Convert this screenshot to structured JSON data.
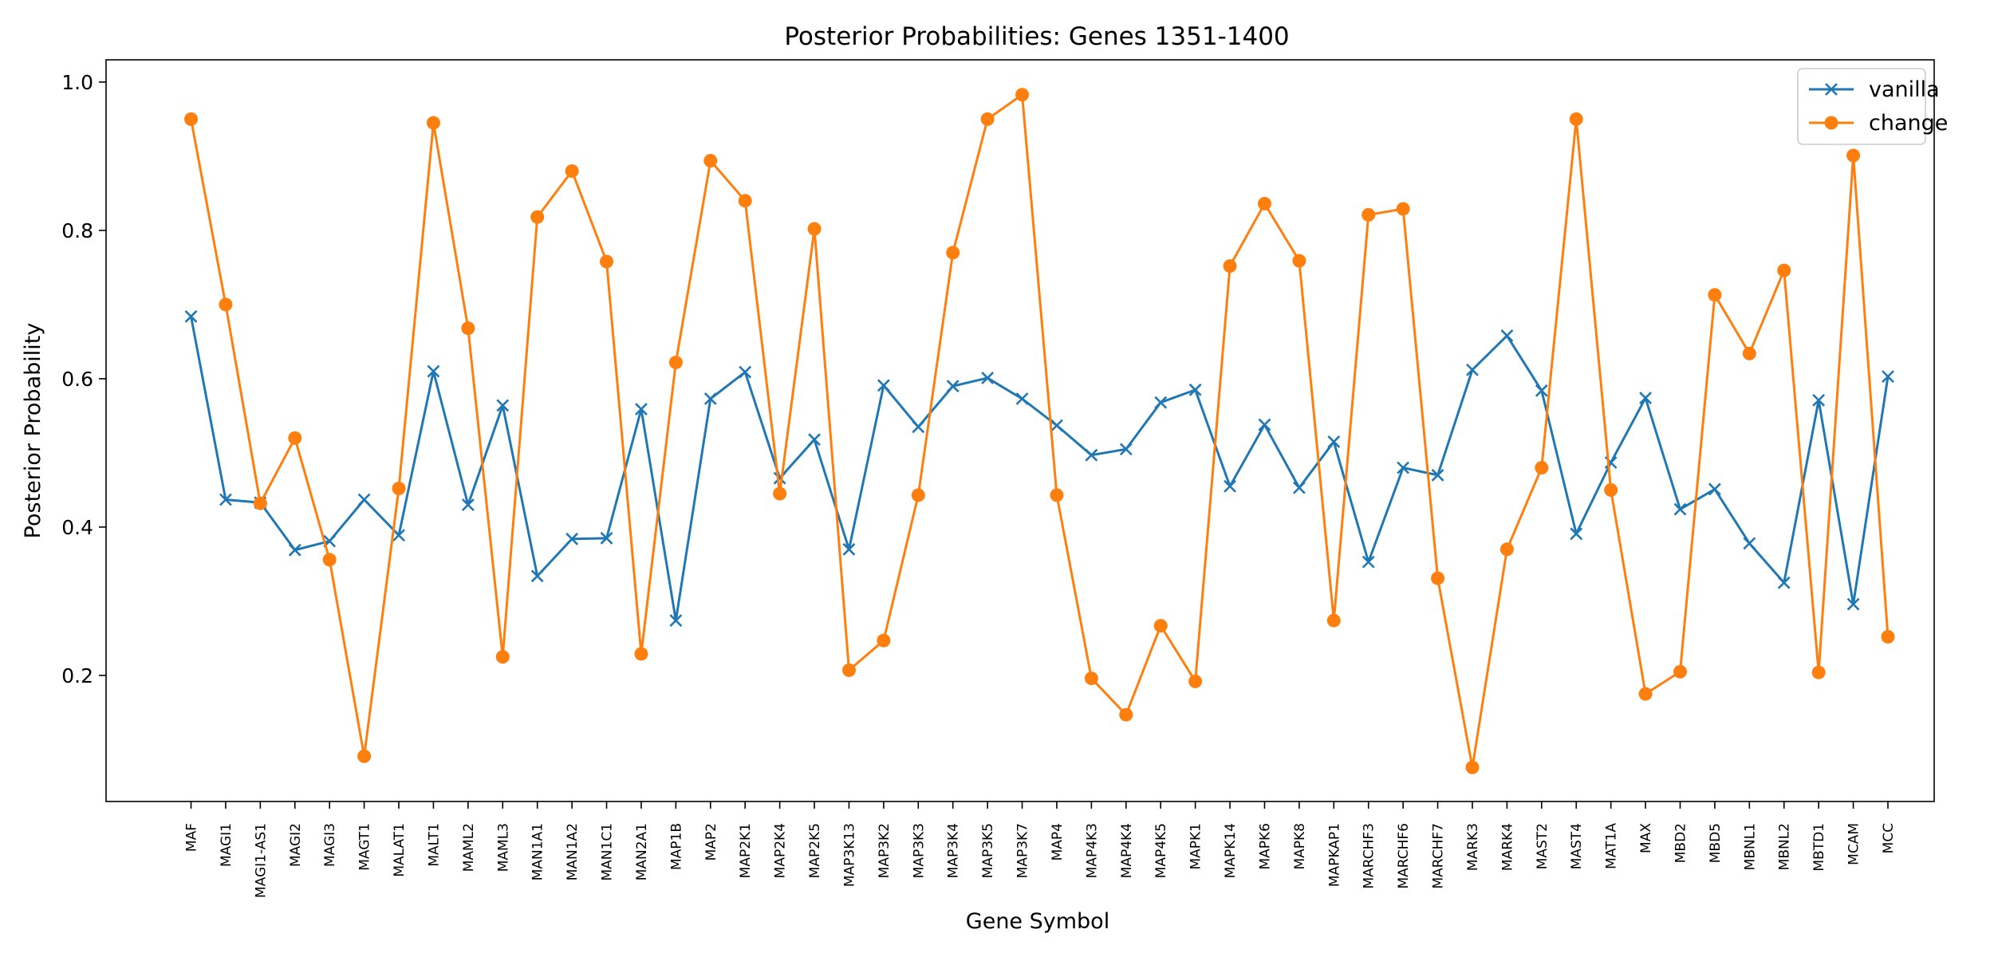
{
  "chart_data": {
    "type": "line",
    "title": "Posterior Probabilities: Genes 1351-1400",
    "xlabel": "Gene Symbol",
    "ylabel": "Posterior Probability",
    "ylim": [
      0.03,
      1.03
    ],
    "yticks": [
      "0.2",
      "0.4",
      "0.6",
      "0.8",
      "1.0"
    ],
    "grid": false,
    "legend_position": "top-right",
    "categories": [
      "MAF",
      "MAGI1",
      "MAGI1-AS1",
      "MAGI2",
      "MAGI3",
      "MAGT1",
      "MALAT1",
      "MALT1",
      "MAML2",
      "MAML3",
      "MAN1A1",
      "MAN1A2",
      "MAN1C1",
      "MAN2A1",
      "MAP1B",
      "MAP2",
      "MAP2K1",
      "MAP2K4",
      "MAP2K5",
      "MAP3K13",
      "MAP3K2",
      "MAP3K3",
      "MAP3K4",
      "MAP3K5",
      "MAP3K7",
      "MAP4",
      "MAP4K3",
      "MAP4K4",
      "MAP4K5",
      "MAPK1",
      "MAPK14",
      "MAPK6",
      "MAPK8",
      "MAPKAP1",
      "MARCHF3",
      "MARCHF6",
      "MARCHF7",
      "MARK3",
      "MARK4",
      "MAST2",
      "MAST4",
      "MAT1A",
      "MAX",
      "MBD2",
      "MBD5",
      "MBNL1",
      "MBNL2",
      "MBTD1",
      "MCAM",
      "MCC"
    ],
    "series": [
      {
        "name": "vanilla",
        "color": "#1f77b4",
        "marker": "x",
        "values": [
          0.684,
          0.437,
          0.433,
          0.369,
          0.381,
          0.437,
          0.389,
          0.61,
          0.43,
          0.564,
          0.334,
          0.384,
          0.385,
          0.559,
          0.274,
          0.573,
          0.609,
          0.466,
          0.518,
          0.37,
          0.591,
          0.535,
          0.59,
          0.601,
          0.573,
          0.537,
          0.497,
          0.505,
          0.568,
          0.585,
          0.455,
          0.538,
          0.453,
          0.515,
          0.353,
          0.48,
          0.47,
          0.612,
          0.658,
          0.584,
          0.391,
          0.487,
          0.574,
          0.424,
          0.451,
          0.378,
          0.325,
          0.571,
          0.296,
          0.603
        ]
      },
      {
        "name": "change",
        "color": "#ff7f0e",
        "marker": "o",
        "values": [
          0.95,
          0.7,
          0.432,
          0.52,
          0.356,
          0.091,
          0.452,
          0.945,
          0.668,
          0.225,
          0.818,
          0.88,
          0.758,
          0.229,
          0.622,
          0.894,
          0.84,
          0.445,
          0.802,
          0.207,
          0.247,
          0.443,
          0.77,
          0.95,
          0.983,
          0.443,
          0.196,
          0.147,
          0.267,
          0.192,
          0.752,
          0.836,
          0.759,
          0.274,
          0.821,
          0.829,
          0.331,
          0.076,
          0.37,
          0.48,
          0.95,
          0.45,
          0.175,
          0.205,
          0.713,
          0.634,
          0.746,
          0.204,
          0.901,
          0.252
        ]
      }
    ]
  }
}
